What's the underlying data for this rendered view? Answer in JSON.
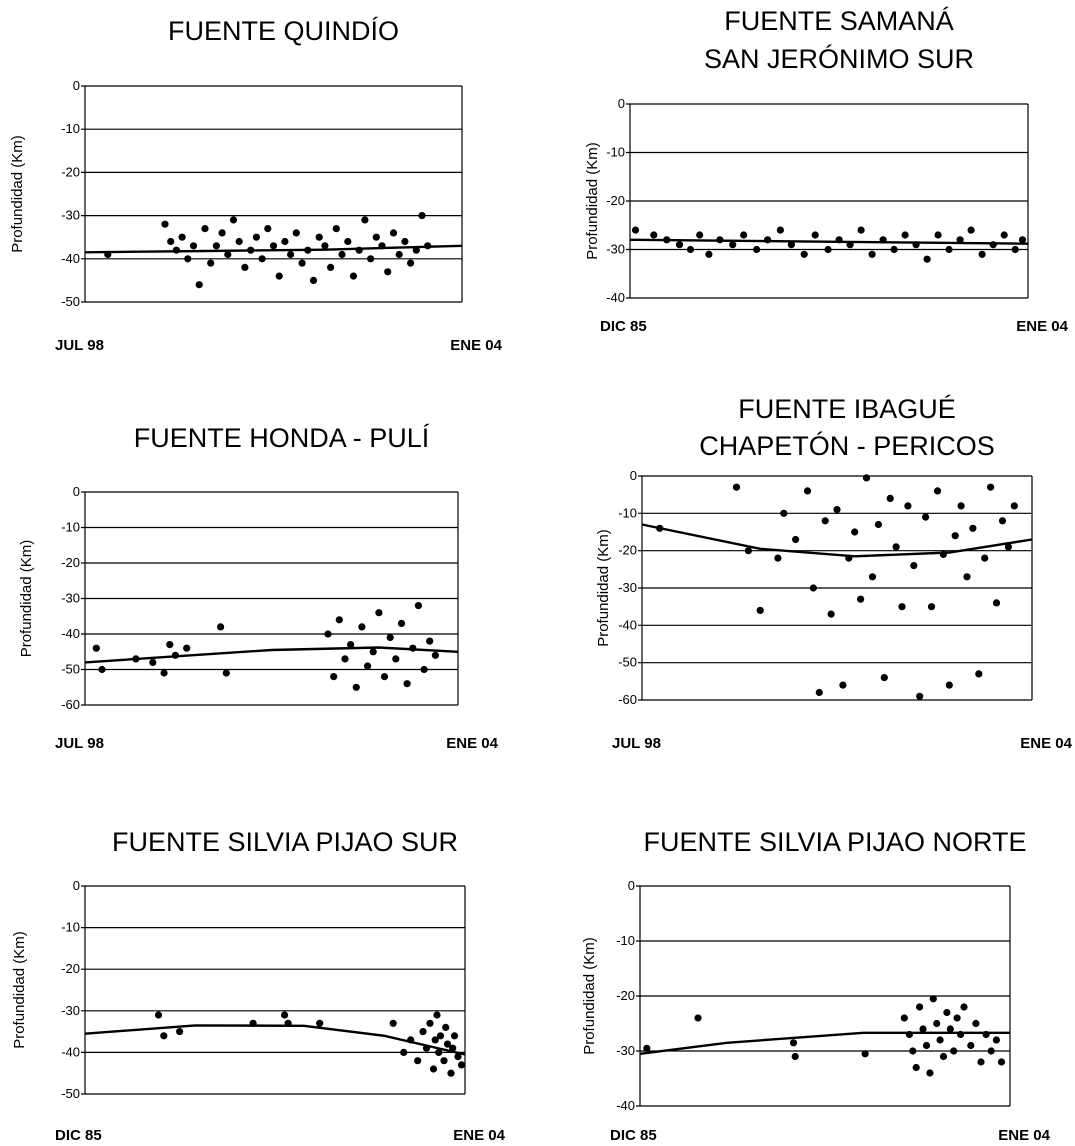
{
  "chart_data": [
    {
      "type": "scatter",
      "title": [
        "FUENTE QUINDÍO"
      ],
      "ylabel": "Profundidad (Km)",
      "x_start_label": "JUL 98",
      "x_end_label": "ENE  04",
      "x_range": [
        "1998-07",
        "2004-01"
      ],
      "ylim": [
        -50,
        0
      ],
      "yticks": [
        0,
        -10,
        -20,
        -30,
        -40,
        -50
      ],
      "points": [
        [
          "1998-11",
          -39
        ],
        [
          "1999-09",
          -32
        ],
        [
          "1999-10",
          -36
        ],
        [
          "1999-11",
          -38
        ],
        [
          "1999-12",
          -35
        ],
        [
          "2000-01",
          -40
        ],
        [
          "2000-02",
          -37
        ],
        [
          "2000-03",
          -46
        ],
        [
          "2000-04",
          -33
        ],
        [
          "2000-05",
          -41
        ],
        [
          "2000-06",
          -37
        ],
        [
          "2000-07",
          -34
        ],
        [
          "2000-08",
          -39
        ],
        [
          "2000-09",
          -31
        ],
        [
          "2000-10",
          -36
        ],
        [
          "2000-11",
          -42
        ],
        [
          "2000-12",
          -38
        ],
        [
          "2001-01",
          -35
        ],
        [
          "2001-02",
          -40
        ],
        [
          "2001-03",
          -33
        ],
        [
          "2001-04",
          -37
        ],
        [
          "2001-05",
          -44
        ],
        [
          "2001-06",
          -36
        ],
        [
          "2001-07",
          -39
        ],
        [
          "2001-08",
          -34
        ],
        [
          "2001-09",
          -41
        ],
        [
          "2001-10",
          -38
        ],
        [
          "2001-11",
          -45
        ],
        [
          "2001-12",
          -35
        ],
        [
          "2002-01",
          -37
        ],
        [
          "2002-02",
          -42
        ],
        [
          "2002-03",
          -33
        ],
        [
          "2002-04",
          -39
        ],
        [
          "2002-05",
          -36
        ],
        [
          "2002-06",
          -44
        ],
        [
          "2002-07",
          -38
        ],
        [
          "2002-08",
          -31
        ],
        [
          "2002-09",
          -40
        ],
        [
          "2002-10",
          -35
        ],
        [
          "2002-11",
          -37
        ],
        [
          "2002-12",
          -43
        ],
        [
          "2003-01",
          -34
        ],
        [
          "2003-02",
          -39
        ],
        [
          "2003-03",
          -36
        ],
        [
          "2003-04",
          -41
        ],
        [
          "2003-05",
          -38
        ],
        [
          "2003-06",
          -30
        ],
        [
          "2003-07",
          -37
        ]
      ],
      "trend": [
        [
          "1998-07",
          -38.5
        ],
        [
          "2000-04",
          -38.2
        ],
        [
          "2002-01",
          -37.9
        ],
        [
          "2004-01",
          -37
        ]
      ]
    },
    {
      "type": "scatter",
      "title": [
        "FUENTE SAMANÁ",
        "SAN JERÓNIMO SUR"
      ],
      "ylabel": "Profundidad (Km)",
      "x_start_label": "DIC 85",
      "x_end_label": "ENE  04",
      "x_range": [
        "1985-12",
        "2004-01"
      ],
      "ylim": [
        -40,
        0
      ],
      "yticks": [
        0,
        -10,
        -20,
        -30,
        -40
      ],
      "points": [
        [
          "1986-03",
          -26
        ],
        [
          "1987-01",
          -27
        ],
        [
          "1987-08",
          -28
        ],
        [
          "1988-03",
          -29
        ],
        [
          "1988-09",
          -30
        ],
        [
          "1989-02",
          -27
        ],
        [
          "1989-07",
          -31
        ],
        [
          "1990-01",
          -28
        ],
        [
          "1990-08",
          -29
        ],
        [
          "1991-02",
          -27
        ],
        [
          "1991-09",
          -30
        ],
        [
          "1992-03",
          -28
        ],
        [
          "1992-10",
          -26
        ],
        [
          "1993-04",
          -29
        ],
        [
          "1993-11",
          -31
        ],
        [
          "1994-05",
          -27
        ],
        [
          "1994-12",
          -30
        ],
        [
          "1995-06",
          -28
        ],
        [
          "1995-12",
          -29
        ],
        [
          "1996-06",
          -26
        ],
        [
          "1996-12",
          -31
        ],
        [
          "1997-06",
          -28
        ],
        [
          "1997-12",
          -30
        ],
        [
          "1998-06",
          -27
        ],
        [
          "1998-12",
          -29
        ],
        [
          "1999-06",
          -32
        ],
        [
          "1999-12",
          -27
        ],
        [
          "2000-06",
          -30
        ],
        [
          "2000-12",
          -28
        ],
        [
          "2001-06",
          -26
        ],
        [
          "2001-12",
          -31
        ],
        [
          "2002-06",
          -29
        ],
        [
          "2002-12",
          -27
        ],
        [
          "2003-06",
          -30
        ],
        [
          "2003-10",
          -28
        ]
      ],
      "trend": [
        [
          "1985-12",
          -28
        ],
        [
          "2004-01",
          -28.8
        ]
      ]
    },
    {
      "type": "scatter",
      "title": [
        "FUENTE HONDA - PULÍ"
      ],
      "ylabel": "Profundidad (Km)",
      "x_start_label": "JUL  98",
      "x_end_label": "ENE  04",
      "x_range": [
        "1998-07",
        "2004-01"
      ],
      "ylim": [
        -60,
        0
      ],
      "yticks": [
        0,
        -10,
        -20,
        -30,
        -40,
        -50,
        -60
      ],
      "points": [
        [
          "1998-09",
          -44
        ],
        [
          "1998-10",
          -50
        ],
        [
          "1999-04",
          -47
        ],
        [
          "1999-07",
          -48
        ],
        [
          "1999-09",
          -51
        ],
        [
          "1999-10",
          -43
        ],
        [
          "1999-11",
          -46
        ],
        [
          "2000-01",
          -44
        ],
        [
          "2000-07",
          -38
        ],
        [
          "2000-08",
          -51
        ],
        [
          "2002-02",
          -40
        ],
        [
          "2002-03",
          -52
        ],
        [
          "2002-04",
          -36
        ],
        [
          "2002-05",
          -47
        ],
        [
          "2002-06",
          -43
        ],
        [
          "2002-07",
          -55
        ],
        [
          "2002-08",
          -38
        ],
        [
          "2002-09",
          -49
        ],
        [
          "2002-10",
          -45
        ],
        [
          "2002-11",
          -34
        ],
        [
          "2002-12",
          -52
        ],
        [
          "2003-01",
          -41
        ],
        [
          "2003-02",
          -47
        ],
        [
          "2003-03",
          -37
        ],
        [
          "2003-04",
          -54
        ],
        [
          "2003-05",
          -44
        ],
        [
          "2003-06",
          -32
        ],
        [
          "2003-07",
          -50
        ],
        [
          "2003-08",
          -42
        ],
        [
          "2003-09",
          -46
        ]
      ],
      "trend": [
        [
          "1998-07",
          -48
        ],
        [
          "2001-04",
          -44.5
        ],
        [
          "2002-11",
          -43.8
        ],
        [
          "2004-01",
          -45
        ]
      ]
    },
    {
      "type": "scatter",
      "title": [
        "FUENTE IBAGUÉ",
        "CHAPETÓN - PERICOS"
      ],
      "ylabel": "Profundidad (Km)",
      "x_start_label": "JUL  98",
      "x_end_label": "ENE  04",
      "x_range": [
        "1998-07",
        "2004-01"
      ],
      "ylim": [
        -60,
        0
      ],
      "yticks": [
        0,
        -10,
        -20,
        -30,
        -40,
        -50,
        -60
      ],
      "points": [
        [
          "1998-10",
          -14
        ],
        [
          "1999-11",
          -3
        ],
        [
          "2000-01",
          -20
        ],
        [
          "2000-03",
          -36
        ],
        [
          "2000-06",
          -22
        ],
        [
          "2000-07",
          -10
        ],
        [
          "2000-09",
          -17
        ],
        [
          "2000-11",
          -4
        ],
        [
          "2000-12",
          -30
        ],
        [
          "2001-01",
          -58
        ],
        [
          "2001-02",
          -12
        ],
        [
          "2001-03",
          -37
        ],
        [
          "2001-04",
          -9
        ],
        [
          "2001-05",
          -56
        ],
        [
          "2001-06",
          -22
        ],
        [
          "2001-07",
          -15
        ],
        [
          "2001-08",
          -33
        ],
        [
          "2001-09",
          -0.5
        ],
        [
          "2001-10",
          -27
        ],
        [
          "2001-11",
          -13
        ],
        [
          "2001-12",
          -54
        ],
        [
          "2002-01",
          -6
        ],
        [
          "2002-02",
          -19
        ],
        [
          "2002-03",
          -35
        ],
        [
          "2002-04",
          -8
        ],
        [
          "2002-05",
          -24
        ],
        [
          "2002-06",
          -59
        ],
        [
          "2002-07",
          -11
        ],
        [
          "2002-08",
          -35
        ],
        [
          "2002-09",
          -4
        ],
        [
          "2002-10",
          -21
        ],
        [
          "2002-11",
          -56
        ],
        [
          "2002-12",
          -16
        ],
        [
          "2003-01",
          -8
        ],
        [
          "2003-02",
          -27
        ],
        [
          "2003-03",
          -14
        ],
        [
          "2003-04",
          -53
        ],
        [
          "2003-05",
          -22
        ],
        [
          "2003-06",
          -3
        ],
        [
          "2003-07",
          -34
        ],
        [
          "2003-08",
          -12
        ],
        [
          "2003-09",
          -19
        ],
        [
          "2003-10",
          -8
        ]
      ],
      "trend": [
        [
          "1998-07",
          -13
        ],
        [
          "2000-03",
          -19.5
        ],
        [
          "2001-07",
          -21.5
        ],
        [
          "2002-11",
          -20.5
        ],
        [
          "2004-01",
          -17
        ]
      ]
    },
    {
      "type": "scatter",
      "title": [
        "FUENTE SILVIA PIJAO SUR"
      ],
      "ylabel": "Profundidad (Km)",
      "x_start_label": "DIC  85",
      "x_end_label": "ENE  04",
      "x_range": [
        "1985-12",
        "2004-01"
      ],
      "ylim": [
        -50,
        0
      ],
      "yticks": [
        0,
        -10,
        -20,
        -30,
        -40,
        -50
      ],
      "points": [
        [
          "1989-06",
          -31
        ],
        [
          "1989-09",
          -36
        ],
        [
          "1990-06",
          -35
        ],
        [
          "1993-12",
          -33
        ],
        [
          "1995-06",
          -31
        ],
        [
          "1995-08",
          -33
        ],
        [
          "1997-02",
          -33
        ],
        [
          "2000-08",
          -33
        ],
        [
          "2001-02",
          -40
        ],
        [
          "2001-06",
          -37
        ],
        [
          "2001-10",
          -42
        ],
        [
          "2002-01",
          -35
        ],
        [
          "2002-03",
          -39
        ],
        [
          "2002-05",
          -33
        ],
        [
          "2002-07",
          -44
        ],
        [
          "2002-08",
          -37
        ],
        [
          "2002-09",
          -31
        ],
        [
          "2002-10",
          -40
        ],
        [
          "2002-11",
          -36
        ],
        [
          "2003-01",
          -42
        ],
        [
          "2003-02",
          -34
        ],
        [
          "2003-03",
          -38
        ],
        [
          "2003-05",
          -45
        ],
        [
          "2003-06",
          -39
        ],
        [
          "2003-07",
          -36
        ],
        [
          "2003-09",
          -41
        ],
        [
          "2003-11",
          -43
        ]
      ],
      "trend": [
        [
          "1985-12",
          -35.5
        ],
        [
          "1991-03",
          -33.5
        ],
        [
          "1996-05",
          -33.6
        ],
        [
          "2000-03",
          -36
        ],
        [
          "2004-01",
          -40.5
        ]
      ]
    },
    {
      "type": "scatter",
      "title": [
        "FUENTE SILVIA PIJAO NORTE"
      ],
      "ylabel": "Profundidad (Km)",
      "x_start_label": "DIC  85",
      "x_end_label": "ENE 04",
      "x_range": [
        "1985-12",
        "2004-01"
      ],
      "ylim": [
        -40,
        0
      ],
      "yticks": [
        0,
        -10,
        -20,
        -30,
        -40
      ],
      "points": [
        [
          "1986-04",
          -29.5
        ],
        [
          "1988-10",
          -24
        ],
        [
          "1993-06",
          -28.5
        ],
        [
          "1993-07",
          -31
        ],
        [
          "1996-12",
          -30.5
        ],
        [
          "1998-11",
          -24
        ],
        [
          "1999-02",
          -27
        ],
        [
          "1999-04",
          -30
        ],
        [
          "1999-06",
          -33
        ],
        [
          "1999-08",
          -22
        ],
        [
          "1999-10",
          -26
        ],
        [
          "1999-12",
          -29
        ],
        [
          "2000-02",
          -34
        ],
        [
          "2000-04",
          -20.5
        ],
        [
          "2000-06",
          -25
        ],
        [
          "2000-08",
          -28
        ],
        [
          "2000-10",
          -31
        ],
        [
          "2000-12",
          -23
        ],
        [
          "2001-02",
          -26
        ],
        [
          "2001-04",
          -30
        ],
        [
          "2001-06",
          -24
        ],
        [
          "2001-08",
          -27
        ],
        [
          "2001-10",
          -22
        ],
        [
          "2002-02",
          -29
        ],
        [
          "2002-05",
          -25
        ],
        [
          "2002-08",
          -32
        ],
        [
          "2002-11",
          -27
        ],
        [
          "2003-02",
          -30
        ],
        [
          "2003-05",
          -28
        ],
        [
          "2003-08",
          -32
        ]
      ],
      "trend": [
        [
          "1985-12",
          -30.5
        ],
        [
          "1990-03",
          -28.5
        ],
        [
          "1996-11",
          -26.7
        ],
        [
          "2004-01",
          -26.7
        ]
      ]
    }
  ]
}
